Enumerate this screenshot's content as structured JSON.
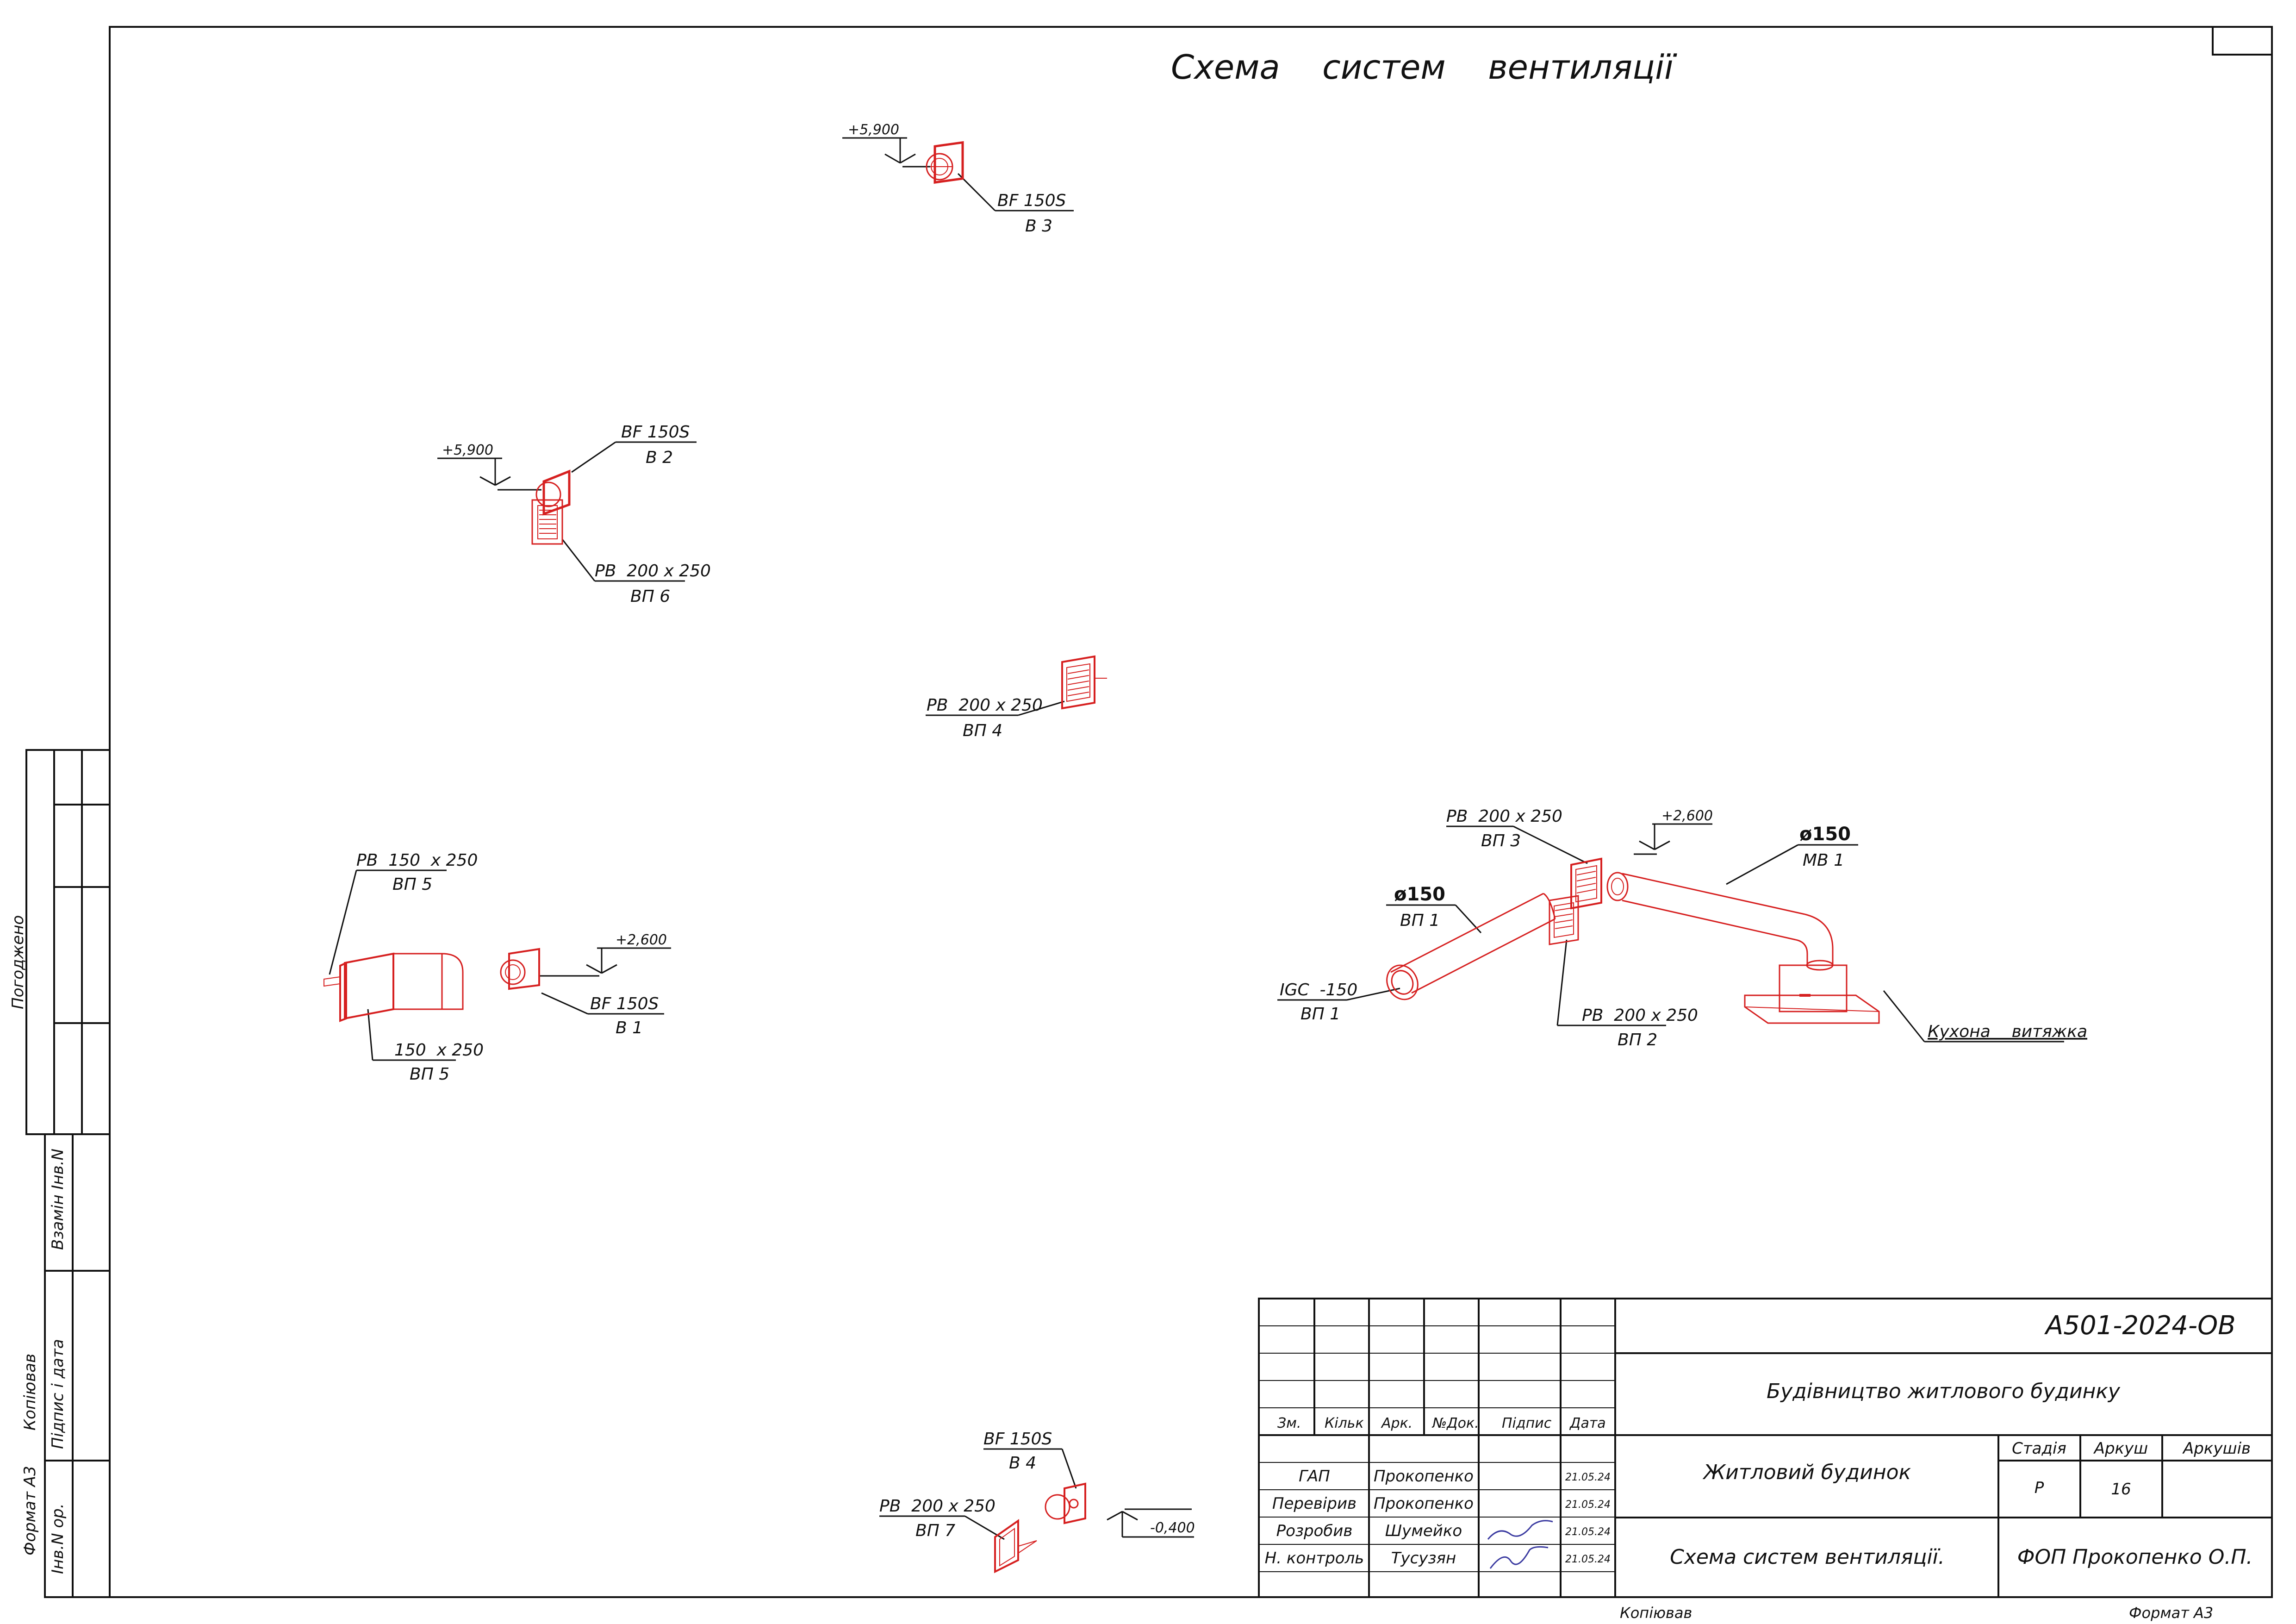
{
  "sheet": {
    "title": "Схема    систем    вентиляції",
    "format_label": "Формат А3",
    "copied_label": "Копіював"
  },
  "side_stamps": {
    "agreed": "Погоджено",
    "replaced_inv": "Взамін Інв.N",
    "sign_date": "Підпис і дата",
    "copied": "Копіював",
    "format": "Формат А3",
    "inv_orig": "Інв.N ор."
  },
  "annotations": [
    {
      "id": "bf150s-b3",
      "top": "BF 150S",
      "bottom": "В 3"
    },
    {
      "id": "bf150s-b2",
      "top": "BF 150S",
      "bottom": "В 2"
    },
    {
      "id": "pb200-vp6",
      "top": "РВ  200 х 250",
      "bottom": "ВП 6"
    },
    {
      "id": "pb200-vp4",
      "top": "РВ  200 х 250",
      "bottom": "ВП 4"
    },
    {
      "id": "pb150-vp5",
      "top": "РВ  150  х 250",
      "bottom": "ВП 5"
    },
    {
      "id": "duct-vp5",
      "top": "150  х 250",
      "bottom": "ВП 5"
    },
    {
      "id": "bf150s-b1",
      "top": "BF 150S",
      "bottom": "В 1"
    },
    {
      "id": "pb200-vp3",
      "top": "РВ  200 х 250",
      "bottom": "ВП 3"
    },
    {
      "id": "d150-mv1",
      "top": "ø150",
      "bottom": "МВ 1"
    },
    {
      "id": "d150-vp1",
      "top": "ø150",
      "bottom": "ВП 1"
    },
    {
      "id": "igc-vp1",
      "top": "IGC  -150",
      "bottom": "ВП 1"
    },
    {
      "id": "pb200-vp2",
      "top": "РВ  200 х 250",
      "bottom": "ВП 2"
    },
    {
      "id": "kitchen-hood",
      "top": "Кухона    витяжка",
      "bottom": ""
    },
    {
      "id": "bf150s-b4",
      "top": "BF 150S",
      "bottom": "В 4"
    },
    {
      "id": "pb200-vp7",
      "top": "РВ  200 х 250",
      "bottom": "ВП 7"
    }
  ],
  "elevations": [
    "+5,900",
    "+5,900",
    "+2,600",
    "+2,600",
    "-0,400"
  ],
  "title_block": {
    "doc_code": "А501-2024-ОВ",
    "project": "Будівництво житлового будинку",
    "building": "Житловий будинок",
    "sheet_name": "Схема систем вентиляції.",
    "company": "ФОП Прокопенко О.П.",
    "col_headers": [
      "Зм.",
      "Кільк",
      "Арк.",
      "№Док.",
      "Підпис",
      "Дата"
    ],
    "stage_label": "Стадія",
    "sheet_label": "Аркуш",
    "sheets_label": "Аркушів",
    "stage": "Р",
    "sheet": "16",
    "sheets": "",
    "staff": [
      {
        "role": "ГАП",
        "name": "Прокопенко",
        "date": "21.05.24"
      },
      {
        "role": "Перевірив",
        "name": "Прокопенко",
        "date": "21.05.24"
      },
      {
        "role": "Розробив",
        "name": "Шумейко",
        "date": "21.05.24"
      },
      {
        "role": "Н. контроль",
        "name": "Тусузян",
        "date": "21.05.24"
      }
    ]
  },
  "colors": {
    "line": "#111111",
    "equipment": "#d62020"
  }
}
